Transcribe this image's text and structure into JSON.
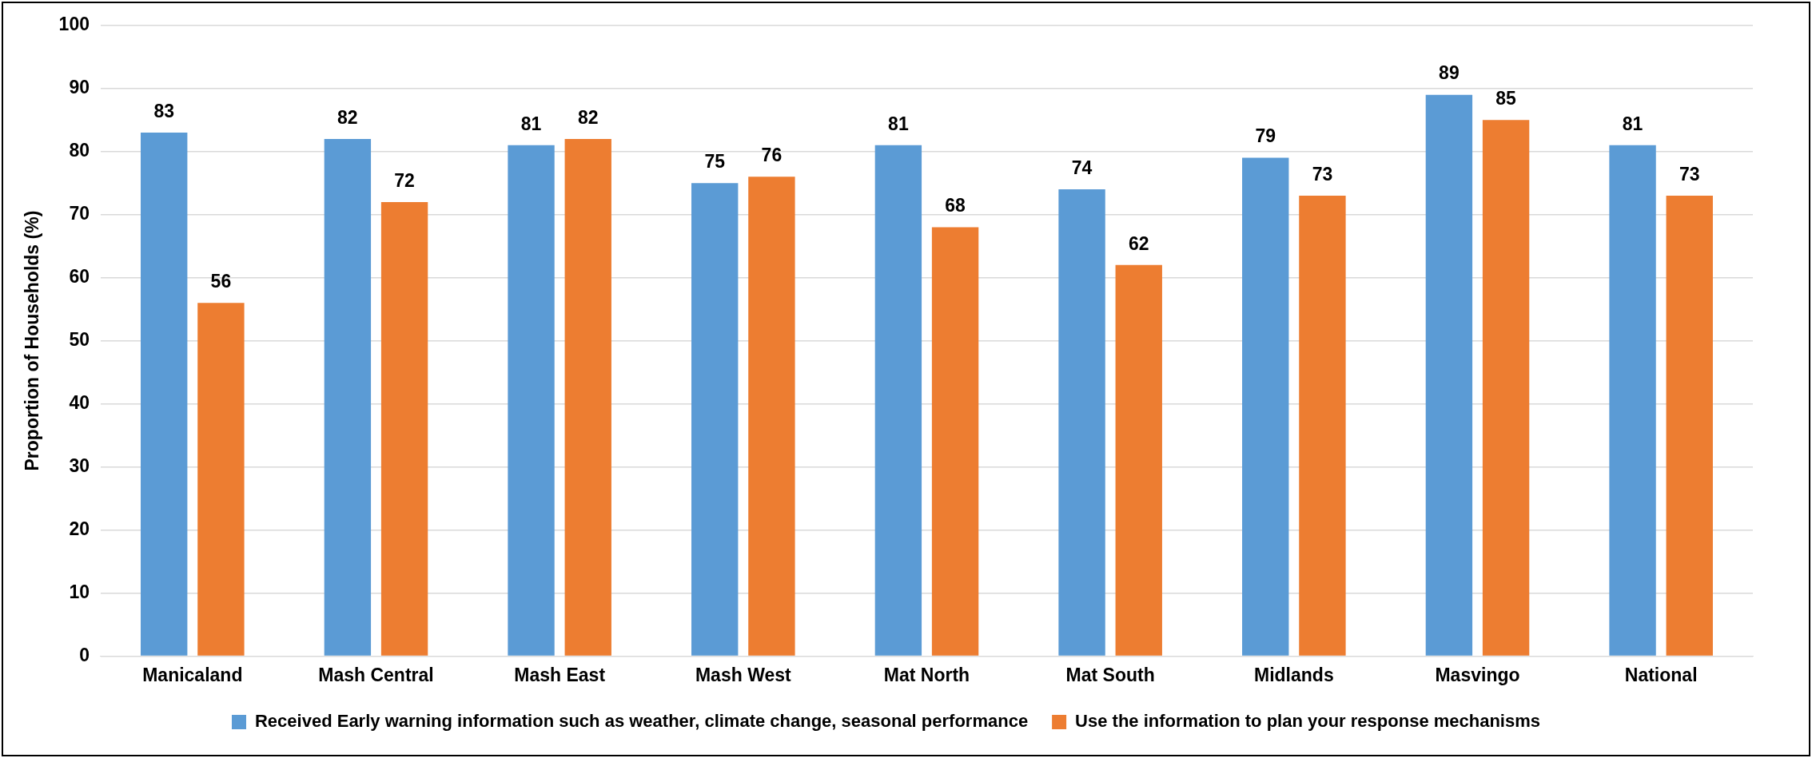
{
  "chart_data": {
    "type": "bar",
    "ylabel": "Proportion of Households (%)",
    "categories": [
      "Manicaland",
      "Mash Central",
      "Mash East",
      "Mash West",
      "Mat North",
      "Mat South",
      "Midlands",
      "Masvingo",
      "National"
    ],
    "series": [
      {
        "name": "Received Early warning information such as weather, climate change, seasonal performance",
        "color": "#5b9bd5",
        "values": [
          83,
          82,
          81,
          75,
          81,
          74,
          79,
          89,
          81
        ]
      },
      {
        "name": "Use the information to plan your response mechanisms",
        "color": "#ed7d31",
        "values": [
          56,
          72,
          82,
          76,
          68,
          62,
          73,
          85,
          73
        ]
      }
    ],
    "ylim": [
      0,
      100
    ],
    "yticks": [
      0,
      10,
      20,
      30,
      40,
      50,
      60,
      70,
      80,
      90,
      100
    ],
    "grid": "y",
    "legend": "bottom",
    "data_labels": true
  }
}
